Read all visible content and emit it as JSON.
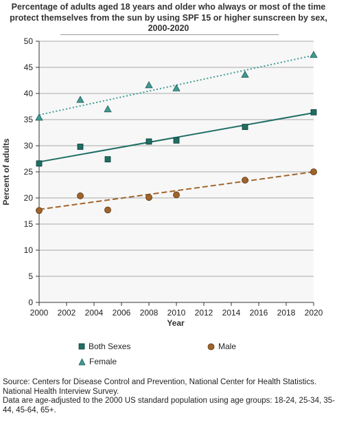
{
  "chart_data": {
    "type": "scatter",
    "title": "Percentage of adults aged 18 years and older who always or most of the time protect themselves from the sun by using SPF 15 or higher sunscreen by sex, 2000-2020",
    "xlabel": "Year",
    "ylabel": "Percent of adults",
    "xlim": [
      2000,
      2020
    ],
    "ylim": [
      0,
      50
    ],
    "x_ticks": [
      2000,
      2002,
      2004,
      2006,
      2008,
      2010,
      2012,
      2014,
      2016,
      2018,
      2020
    ],
    "y_ticks": [
      0,
      5,
      10,
      15,
      20,
      25,
      30,
      35,
      40,
      45,
      50
    ],
    "grid": "horizontal",
    "legend_position": "bottom",
    "series": [
      {
        "name": "Both Sexes",
        "marker": "square",
        "color": "#1f6e64",
        "trendline": "solid",
        "trend": [
          26.9,
          36.3
        ],
        "points": [
          [
            2000,
            26.6
          ],
          [
            2003,
            29.8
          ],
          [
            2005,
            27.4
          ],
          [
            2008,
            30.8
          ],
          [
            2010,
            31.0
          ],
          [
            2015,
            33.6
          ],
          [
            2020,
            36.4
          ]
        ]
      },
      {
        "name": "Male",
        "marker": "circle",
        "color": "#a0642b",
        "trendline": "dashed",
        "trend": [
          17.8,
          25.0
        ],
        "points": [
          [
            2000,
            17.6
          ],
          [
            2003,
            20.4
          ],
          [
            2005,
            17.7
          ],
          [
            2008,
            20.1
          ],
          [
            2010,
            20.6
          ],
          [
            2015,
            23.4
          ],
          [
            2020,
            25.0
          ]
        ]
      },
      {
        "name": "Female",
        "marker": "triangle",
        "color": "#3e9b93",
        "trendline": "dotted",
        "trend": [
          35.9,
          47.3
        ],
        "points": [
          [
            2000,
            35.4
          ],
          [
            2003,
            38.8
          ],
          [
            2005,
            37.0
          ],
          [
            2008,
            41.6
          ],
          [
            2010,
            41.0
          ],
          [
            2015,
            43.6
          ],
          [
            2020,
            47.4
          ]
        ]
      }
    ]
  },
  "footer": {
    "source": "Source: Centers for Disease Control and Prevention, National Center for Health Statistics. National Health Interview Survey.",
    "note": "Data are age-adjusted to the 2000 US standard population using age groups: 18-24, 25-34, 35-44, 45-64, 65+."
  }
}
